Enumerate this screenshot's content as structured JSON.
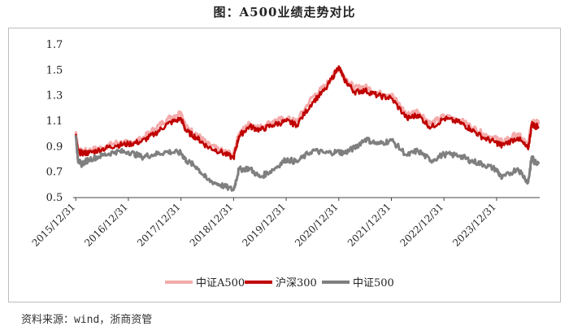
{
  "title": "图：A500业绩走势对比",
  "source": "资料来源：wind，浙商资管",
  "chart_data": {
    "type": "line",
    "ylim": [
      0.5,
      1.7
    ],
    "yticks": [
      0.5,
      0.7,
      0.9,
      1.1,
      1.3,
      1.5,
      1.7
    ],
    "ytick_labels": [
      "0.5",
      "0.7",
      "0.9",
      "1.1",
      "1.3",
      "1.5",
      "1.7"
    ],
    "xlim": [
      2015.95,
      2024.82
    ],
    "xticks": [
      2016.0,
      2017.0,
      2018.0,
      2019.0,
      2020.0,
      2021.0,
      2022.0,
      2023.0,
      2024.0
    ],
    "xtick_labels": [
      "2015/12/31",
      "2016/12/31",
      "2017/12/31",
      "2018/12/31",
      "2019/12/31",
      "2020/12/31",
      "2021/12/31",
      "2022/12/31",
      "2023/12/31"
    ],
    "grid": false,
    "legend_position": "bottom",
    "x": [
      2016.0,
      2016.04,
      2016.1,
      2016.25,
      2016.5,
      2016.75,
      2017.0,
      2017.25,
      2017.5,
      2017.75,
      2018.0,
      2018.1,
      2018.3,
      2018.5,
      2018.75,
      2019.0,
      2019.1,
      2019.3,
      2019.5,
      2019.75,
      2020.0,
      2020.2,
      2020.5,
      2020.75,
      2021.0,
      2021.1,
      2021.3,
      2021.5,
      2021.75,
      2022.0,
      2022.3,
      2022.5,
      2022.75,
      2023.0,
      2023.3,
      2023.5,
      2023.75,
      2024.0,
      2024.1,
      2024.4,
      2024.6,
      2024.67,
      2024.72,
      2024.8
    ],
    "series": [
      {
        "name": "中证A500",
        "color": "#f4aaaa",
        "values": [
          1.02,
          0.88,
          0.86,
          0.87,
          0.89,
          0.93,
          0.93,
          0.96,
          1.04,
          1.12,
          1.17,
          1.05,
          1.0,
          0.92,
          0.87,
          0.84,
          1.0,
          1.08,
          1.05,
          1.1,
          1.12,
          1.1,
          1.29,
          1.38,
          1.52,
          1.45,
          1.36,
          1.37,
          1.32,
          1.31,
          1.15,
          1.18,
          1.08,
          1.14,
          1.11,
          1.06,
          1.0,
          0.96,
          0.94,
          1.0,
          0.91,
          1.1,
          1.1,
          1.08
        ]
      },
      {
        "name": "沪深300",
        "color": "#c00000",
        "values": [
          1.0,
          0.86,
          0.85,
          0.85,
          0.88,
          0.91,
          0.92,
          0.94,
          1.0,
          1.08,
          1.12,
          1.02,
          0.97,
          0.9,
          0.86,
          0.81,
          0.98,
          1.06,
          1.03,
          1.07,
          1.1,
          1.07,
          1.25,
          1.35,
          1.53,
          1.43,
          1.33,
          1.34,
          1.3,
          1.28,
          1.12,
          1.15,
          1.05,
          1.12,
          1.09,
          1.04,
          0.97,
          0.93,
          0.91,
          0.97,
          0.88,
          1.08,
          1.06,
          1.06
        ]
      },
      {
        "name": "中证500",
        "color": "#7f7f7f",
        "values": [
          0.99,
          0.8,
          0.76,
          0.8,
          0.83,
          0.86,
          0.86,
          0.82,
          0.84,
          0.86,
          0.85,
          0.79,
          0.74,
          0.64,
          0.6,
          0.56,
          0.72,
          0.73,
          0.66,
          0.72,
          0.8,
          0.78,
          0.87,
          0.85,
          0.86,
          0.85,
          0.89,
          0.96,
          0.92,
          0.95,
          0.83,
          0.87,
          0.79,
          0.84,
          0.83,
          0.79,
          0.76,
          0.72,
          0.65,
          0.73,
          0.62,
          0.82,
          0.78,
          0.78
        ]
      }
    ]
  }
}
